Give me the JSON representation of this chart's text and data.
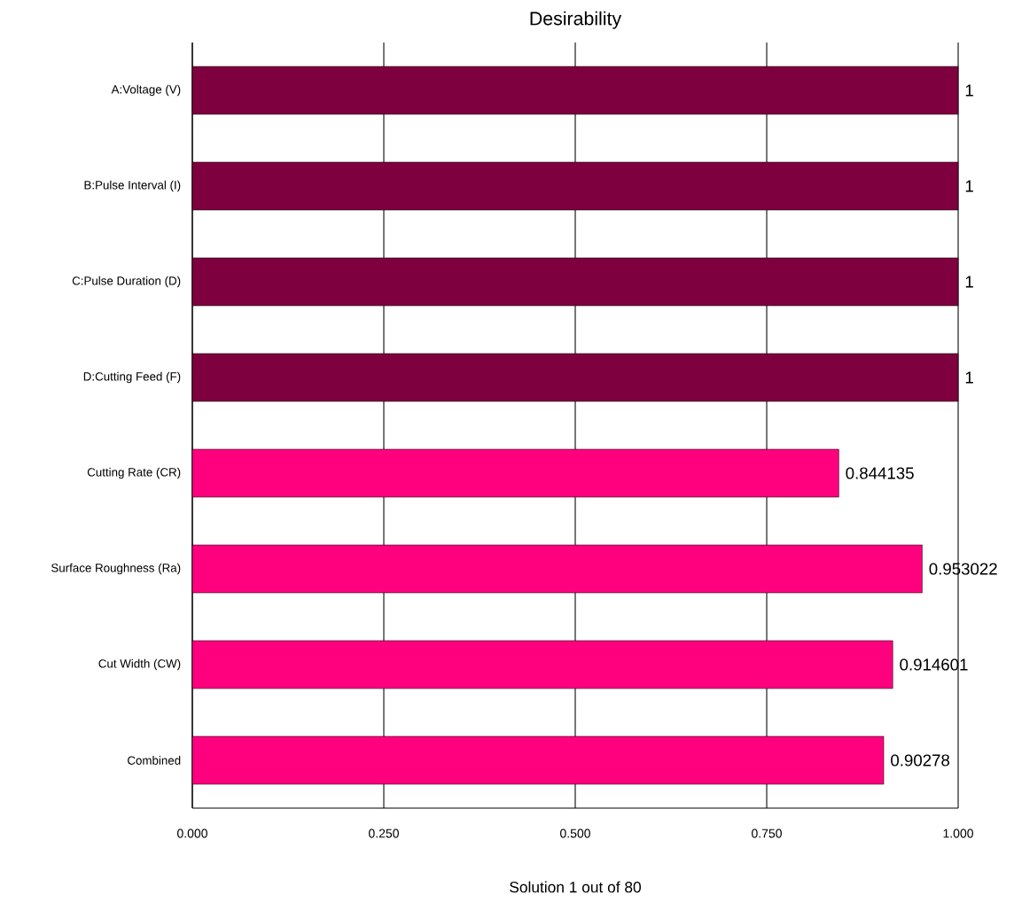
{
  "chart_data": {
    "type": "bar",
    "orientation": "horizontal",
    "title": "Desirability",
    "xlabel": "Solution 1 out of 80",
    "categories": [
      "A:Voltage (V)",
      "B:Pulse Interval (I)",
      "C:Pulse Duration (D)",
      "D:Cutting Feed (F)",
      "Cutting Rate (CR)",
      "Surface Roughness (Ra)",
      "Cut Width (CW)",
      "Combined"
    ],
    "values": [
      1,
      1,
      1,
      1,
      0.844135,
      0.953022,
      0.914601,
      0.90278
    ],
    "colors": [
      "#7f003f",
      "#7f003f",
      "#7f003f",
      "#7f003f",
      "#ff007f",
      "#ff007f",
      "#ff007f",
      "#ff007f"
    ],
    "xlim": [
      0,
      1
    ],
    "xticks": [
      {
        "value": 0,
        "label": "0.000"
      },
      {
        "value": 0.25,
        "label": "0.250"
      },
      {
        "value": 0.5,
        "label": "0.500"
      },
      {
        "value": 0.75,
        "label": "0.750"
      },
      {
        "value": 1,
        "label": "1.000"
      }
    ],
    "grid": "x",
    "data_labels": true
  }
}
